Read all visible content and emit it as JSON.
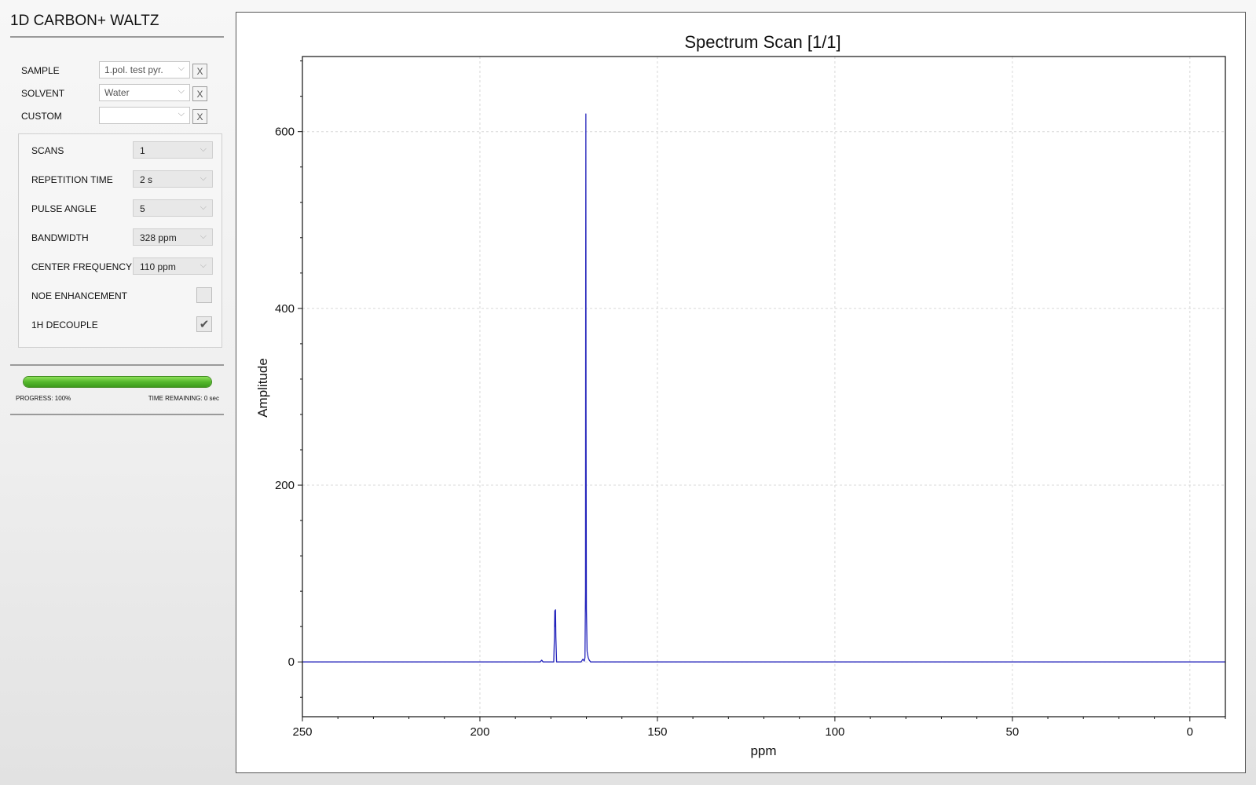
{
  "app": {
    "title": "1D CARBON+ WALTZ"
  },
  "inputs": [
    {
      "label": "SAMPLE",
      "value": "1.pol. test pyr.",
      "clear": "X"
    },
    {
      "label": "SOLVENT",
      "value": "Water",
      "clear": "X"
    },
    {
      "label": "CUSTOM",
      "value": "",
      "clear": "X"
    }
  ],
  "params": {
    "scans": {
      "label": "SCANS",
      "value": "1"
    },
    "repetition_time": {
      "label": "REPETITION TIME",
      "value": "2 s"
    },
    "pulse_angle": {
      "label": "PULSE ANGLE",
      "value": "5"
    },
    "bandwidth": {
      "label": "BANDWIDTH",
      "value": "328 ppm"
    },
    "center_frequency": {
      "label": "CENTER FREQUENCY",
      "value": "110 ppm"
    },
    "noe_enhancement": {
      "label": "NOE ENHANCEMENT",
      "checked": false
    },
    "h_decouple": {
      "label": "1H DECOUPLE",
      "checked": true,
      "checkmark": "✔"
    }
  },
  "progress": {
    "fraction": 1.0,
    "progress_text": "PROGRESS: 100%",
    "time_text": "TIME REMAINING: 0 sec",
    "bar_color": "#54b82c"
  },
  "icons": {
    "dropdown": "chevron-down-icon",
    "check": "check-icon"
  },
  "chart_data": {
    "type": "line",
    "title": "Spectrum Scan [1/1]",
    "xlabel": "ppm",
    "ylabel": "Amplitude",
    "xlim": [
      250,
      -10
    ],
    "ylim": [
      -62,
      685
    ],
    "x_reversed": true,
    "xticks": [
      250,
      200,
      150,
      100,
      50,
      0
    ],
    "yticks": [
      0,
      200,
      400,
      600
    ],
    "grid": true,
    "line_color": "#2222bb",
    "series": [
      {
        "values": [
          [
            250,
            0
          ],
          [
            183,
            0
          ],
          [
            182.6,
            2
          ],
          [
            182.2,
            0
          ],
          [
            179.2,
            0
          ],
          [
            179,
            30
          ],
          [
            178.9,
            58
          ],
          [
            178.8,
            40
          ],
          [
            178.7,
            59
          ],
          [
            178.6,
            28
          ],
          [
            178.4,
            0
          ],
          [
            171.5,
            0
          ],
          [
            171,
            3
          ],
          [
            170.6,
            1
          ],
          [
            170.4,
            5
          ],
          [
            170.25,
            80
          ],
          [
            170.2,
            430
          ],
          [
            170.15,
            620
          ],
          [
            170.1,
            290
          ],
          [
            170.0,
            60
          ],
          [
            169.8,
            12
          ],
          [
            169.5,
            5
          ],
          [
            169.2,
            2
          ],
          [
            168.8,
            0
          ],
          [
            -10,
            0
          ]
        ]
      }
    ]
  }
}
